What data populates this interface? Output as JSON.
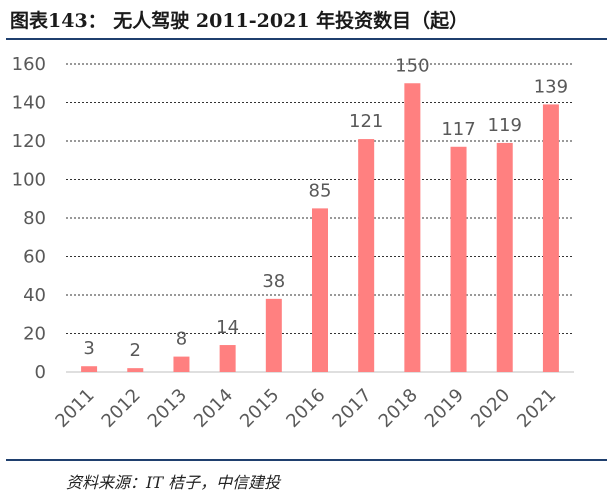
{
  "figure": {
    "title": "图表143：  无人驾驶 2011-2021 年投资数目（起）",
    "source": "资料来源：IT 桔子，中信建投"
  },
  "colors": {
    "bar": "#ff8080",
    "grid": "#333333",
    "axis": "#bfbfbf",
    "rule": "#1f3f6e"
  },
  "chart_data": {
    "type": "bar",
    "title": "无人驾驶 2011-2021 年投资数目（起）",
    "xlabel": "",
    "ylabel": "",
    "categories": [
      "2011",
      "2012",
      "2013",
      "2014",
      "2015",
      "2016",
      "2017",
      "2018",
      "2019",
      "2020",
      "2021"
    ],
    "values": [
      3,
      2,
      8,
      14,
      38,
      85,
      121,
      150,
      117,
      119,
      139
    ],
    "ylim": [
      0,
      160
    ],
    "yticks": [
      0,
      20,
      40,
      60,
      80,
      100,
      120,
      140,
      160
    ],
    "grid": true,
    "data_labels": true
  }
}
